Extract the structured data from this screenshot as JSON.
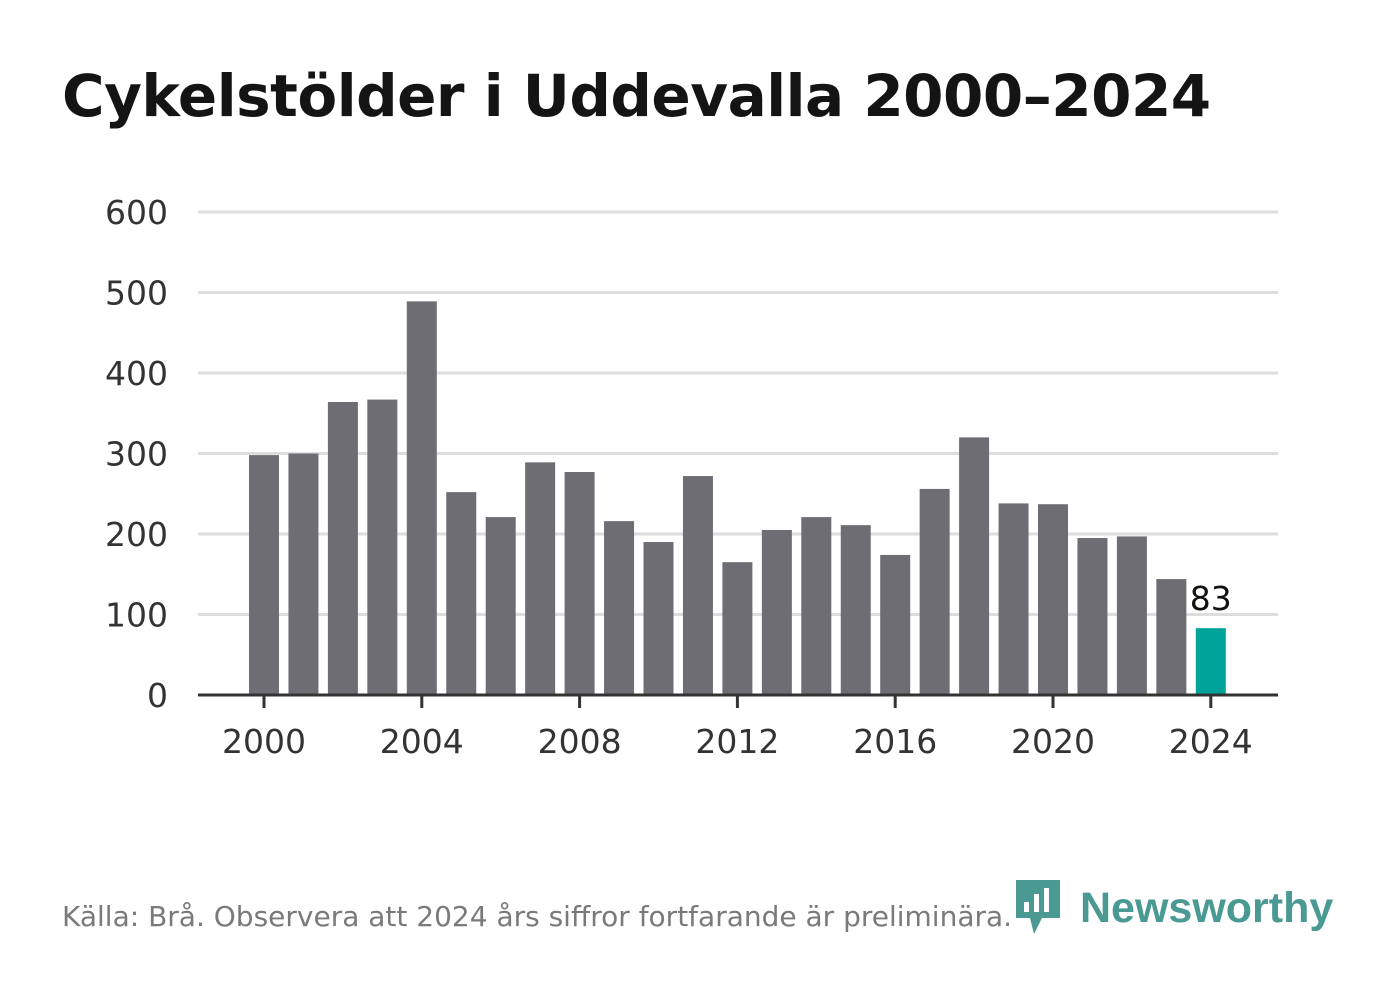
{
  "title": "Cykelstölder i Uddevalla 2000–2024",
  "source": "Källa: Brå. Observera att 2024 års siffror fortfarande är preliminära.",
  "brand": {
    "name": "Newsworthy",
    "icon": "newsworthy-logo-icon"
  },
  "colors": {
    "bar": "#6e6d73",
    "highlight": "#00a39a",
    "grid": "#dddddd",
    "axis": "#333333"
  },
  "chart_data": {
    "type": "bar",
    "title": "Cykelstölder i Uddevalla 2000–2024",
    "xlabel": "",
    "ylabel": "",
    "x": [
      2000,
      2001,
      2002,
      2003,
      2004,
      2005,
      2006,
      2007,
      2008,
      2009,
      2010,
      2011,
      2012,
      2013,
      2014,
      2015,
      2016,
      2017,
      2018,
      2019,
      2020,
      2021,
      2022,
      2023,
      2024
    ],
    "values": [
      298,
      300,
      364,
      367,
      489,
      252,
      221,
      289,
      277,
      216,
      190,
      272,
      165,
      205,
      221,
      211,
      174,
      256,
      320,
      238,
      237,
      195,
      197,
      144,
      83
    ],
    "ylim": [
      0,
      600
    ],
    "y_ticks": [
      0,
      100,
      200,
      300,
      400,
      500,
      600
    ],
    "x_ticks": [
      2000,
      2004,
      2008,
      2012,
      2016,
      2020,
      2024
    ],
    "highlight_index": 24,
    "data_labels": [
      {
        "index": 24,
        "text": "83"
      }
    ],
    "grid": true,
    "legend": "none"
  }
}
